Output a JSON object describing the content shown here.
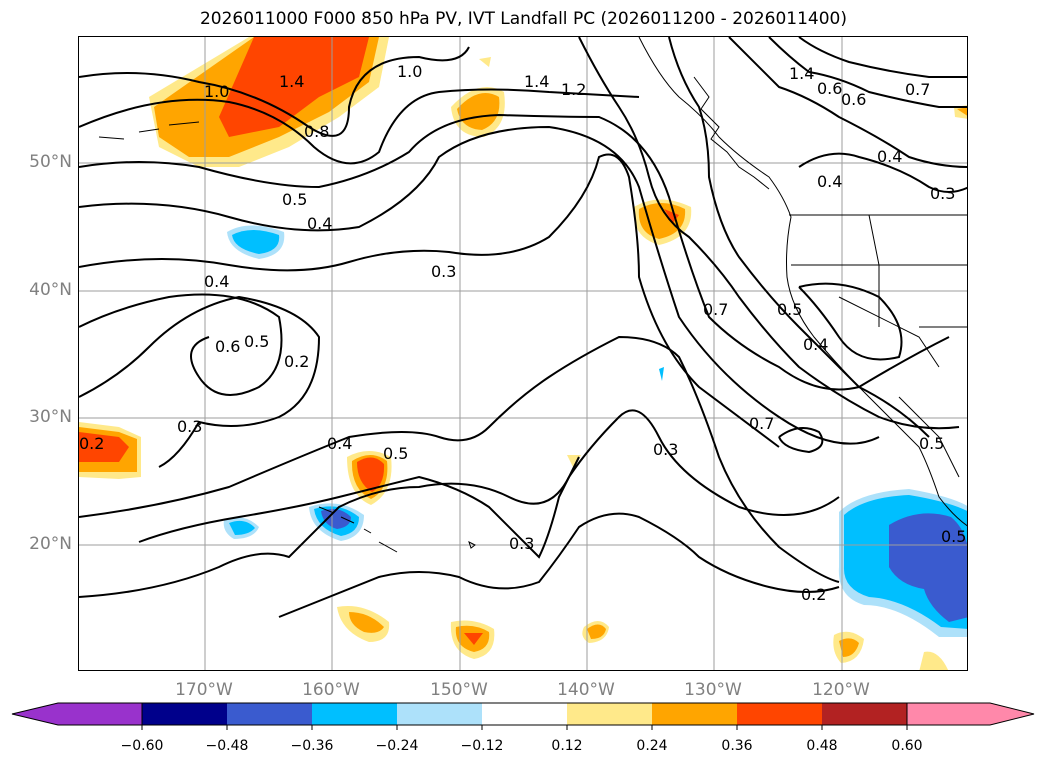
{
  "title": "2026011000 F000 850 hPa PV, IVT Landfall PC (2026011200 - 2026011400)",
  "map": {
    "region": "North Pacific / western North America",
    "lat_labels": [
      "50°N",
      "40°N",
      "30°N",
      "20°N"
    ],
    "lon_labels": [
      "170°W",
      "160°W",
      "150°W",
      "140°W",
      "130°W",
      "120°W"
    ],
    "contour_labels": [
      "1.0",
      "1.4",
      "1.0",
      "0.8",
      "1.4",
      "1.2",
      "1.4",
      "0.6",
      "0.6",
      "0.7",
      "0.5",
      "0.4",
      "0.3",
      "0.4",
      "0.4",
      "0.3",
      "0.4",
      "0.6",
      "0.5",
      "0.2",
      "0.7",
      "0.5",
      "0.4",
      "0.3",
      "0.2",
      "0.4",
      "0.5",
      "0.7",
      "0.3",
      "0.5",
      "0.3",
      "0.2",
      "0.5"
    ]
  },
  "colorbar": {
    "ticks": [
      "−0.60",
      "−0.48",
      "−0.36",
      "−0.24",
      "−0.12",
      "0.12",
      "0.24",
      "0.36",
      "0.48",
      "0.60"
    ],
    "colors": [
      "#9932CC",
      "#00008B",
      "#3A5BCF",
      "#00BFFF",
      "#ADE1FA",
      "#FFFFFF",
      "#FFE98A",
      "#FFA500",
      "#FF4500",
      "#B22222",
      "#FF88AA"
    ]
  },
  "colors": {
    "blue_light": "#ADE1FA",
    "blue": "#00BFFF",
    "blue_dark": "#3A5BCF",
    "yellow": "#FFE98A",
    "orange": "#FFA500",
    "red": "#FF4500"
  }
}
